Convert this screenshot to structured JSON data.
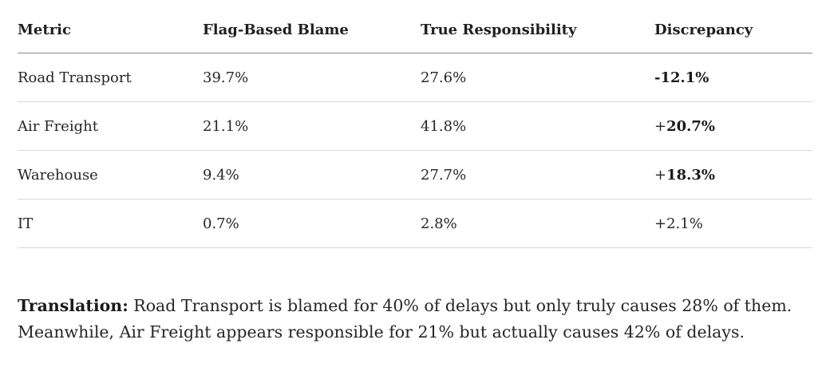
{
  "table": {
    "headers": [
      "Metric",
      "Flag-Based Blame",
      "True Responsibility",
      "Discrepancy"
    ],
    "rows": [
      {
        "metric": "Road Transport",
        "flag": "39.7%",
        "true": "27.6%",
        "sign": "",
        "value": "-12.1%",
        "bold": true
      },
      {
        "metric": "Air Freight",
        "flag": "21.1%",
        "true": "41.8%",
        "sign": "+",
        "value": "20.7%",
        "bold": true
      },
      {
        "metric": "Warehouse",
        "flag": "9.4%",
        "true": "27.7%",
        "sign": "+",
        "value": "18.3%",
        "bold": true
      },
      {
        "metric": "IT",
        "flag": "0.7%",
        "true": "2.8%",
        "sign": "",
        "value": "+2.1%",
        "bold": false
      }
    ]
  },
  "translation": {
    "lead": "Translation:",
    "text": " Road Transport is blamed for 40% of delays but only truly causes 28% of them. Meanwhile, Air Freight appears responsible for 21% but actually causes 42% of delays."
  }
}
